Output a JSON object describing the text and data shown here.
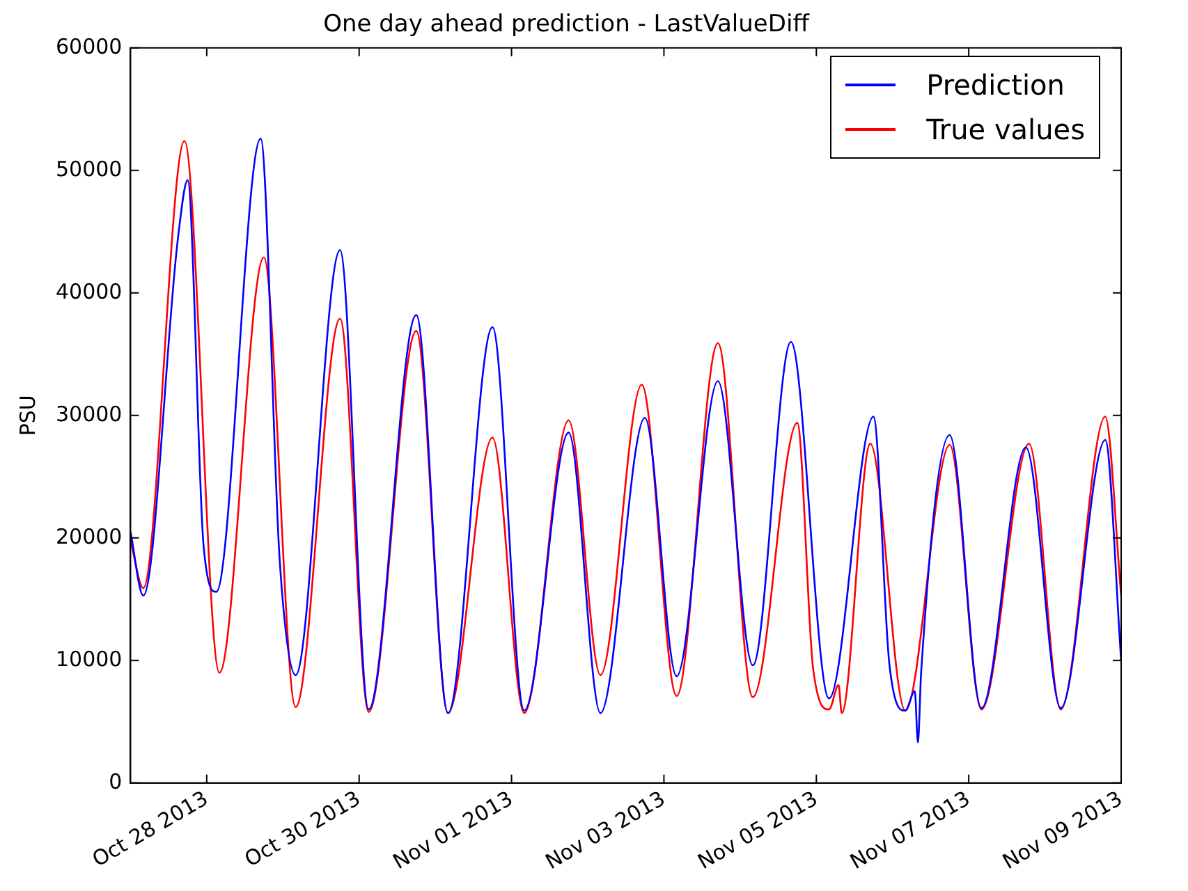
{
  "chart_data": {
    "type": "line",
    "title": "One day ahead prediction - LastValueDiff",
    "ylabel": "PSU",
    "xlim": [
      "2013-10-27",
      "2013-11-09"
    ],
    "xticks": [
      {
        "value": "2013-10-28",
        "label": "Oct 28 2013"
      },
      {
        "value": "2013-10-30",
        "label": "Oct 30 2013"
      },
      {
        "value": "2013-11-01",
        "label": "Nov 01 2013"
      },
      {
        "value": "2013-11-03",
        "label": "Nov 03 2013"
      },
      {
        "value": "2013-11-05",
        "label": "Nov 05 2013"
      },
      {
        "value": "2013-11-07",
        "label": "Nov 07 2013"
      },
      {
        "value": "2013-11-09",
        "label": "Nov 09 2013"
      }
    ],
    "ylim": [
      0,
      60000
    ],
    "yticks": [
      0,
      10000,
      20000,
      30000,
      40000,
      50000,
      60000
    ],
    "grid": false,
    "legend": "top right",
    "marker": "none",
    "line_style": "solid",
    "series": [
      {
        "name": "Prediction",
        "color": "#0000ff",
        "x": [
          "2013-10-27T00:00",
          "2013-10-27T04:00",
          "2013-10-27T15:00",
          "2013-10-27T18:00",
          "2013-10-27T23:00",
          "2013-10-28T03:00",
          "2013-10-28T17:00",
          "2013-10-28T23:00",
          "2013-10-29T04:00",
          "2013-10-29T18:00",
          "2013-10-30T03:00",
          "2013-10-30T18:00",
          "2013-10-31T04:00",
          "2013-10-31T18:00",
          "2013-11-01T04:00",
          "2013-11-01T18:00",
          "2013-11-02T04:00",
          "2013-11-02T18:00",
          "2013-11-03T04:00",
          "2013-11-03T17:00",
          "2013-11-04T04:00",
          "2013-11-04T16:00",
          "2013-11-05T04:00",
          "2013-11-05T18:00",
          "2013-11-05T23:00",
          "2013-11-06T04:00",
          "2013-11-06T07:00",
          "2013-11-06T08:00",
          "2013-11-06T09:00",
          "2013-11-06T18:00",
          "2013-11-07T04:00",
          "2013-11-07T18:00",
          "2013-11-08T05:00",
          "2013-11-08T19:00",
          "2013-11-09T00:00"
        ],
        "values": [
          20500,
          15300,
          44600,
          49200,
          19400,
          15600,
          52600,
          18100,
          8800,
          43500,
          6000,
          38200,
          5700,
          37200,
          5900,
          28600,
          5700,
          29800,
          8700,
          32800,
          9600,
          36000,
          6900,
          29900,
          9700,
          5900,
          7500,
          3300,
          9000,
          28400,
          6100,
          27400,
          6100,
          28000,
          10000
        ]
      },
      {
        "name": "True values",
        "color": "#ff0000",
        "x": [
          "2013-10-27T00:00",
          "2013-10-27T04:00",
          "2013-10-27T17:00",
          "2013-10-28T04:00",
          "2013-10-28T18:00",
          "2013-10-29T04:00",
          "2013-10-29T18:00",
          "2013-10-30T03:00",
          "2013-10-30T18:00",
          "2013-10-31T04:00",
          "2013-10-31T18:00",
          "2013-11-01T04:00",
          "2013-11-01T18:00",
          "2013-11-02T04:00",
          "2013-11-02T17:00",
          "2013-11-03T04:00",
          "2013-11-03T17:00",
          "2013-11-04T04:00",
          "2013-11-04T18:00",
          "2013-11-04T23:00",
          "2013-11-05T04:00",
          "2013-11-05T07:00",
          "2013-11-05T08:00",
          "2013-11-05T17:00",
          "2013-11-06T04:00",
          "2013-11-06T18:00",
          "2013-11-07T04:00",
          "2013-11-07T19:00",
          "2013-11-08T05:00",
          "2013-11-08T19:00",
          "2013-11-09T00:00"
        ],
        "values": [
          19800,
          15900,
          52400,
          9000,
          42900,
          6200,
          37900,
          5800,
          36900,
          5700,
          28200,
          5700,
          29600,
          8800,
          32500,
          7100,
          35900,
          7000,
          29400,
          9300,
          6000,
          8000,
          5700,
          27700,
          5900,
          27600,
          6000,
          27700,
          6000,
          29900,
          15300
        ]
      }
    ]
  }
}
